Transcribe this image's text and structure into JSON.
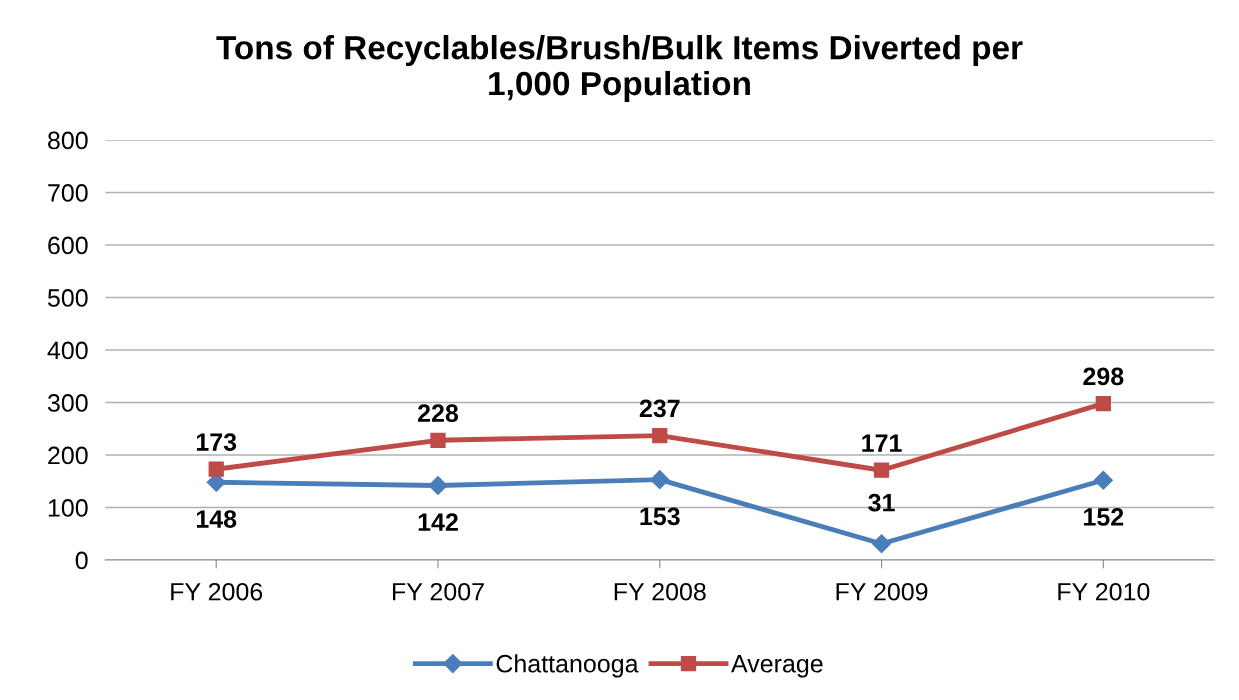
{
  "chart_data": {
    "type": "line",
    "title": "Tons of Recyclables/Brush/Bulk Items Diverted per\n1,000 Population",
    "categories": [
      "FY 2006",
      "FY 2007",
      "FY 2008",
      "FY 2009",
      "FY 2010"
    ],
    "series": [
      {
        "name": "Chattanooga",
        "color": "#4a7ebb",
        "marker": "diamond",
        "values": [
          148,
          142,
          153,
          31,
          152
        ]
      },
      {
        "name": "Average",
        "color": "#be4b48",
        "marker": "square",
        "values": [
          173,
          228,
          237,
          171,
          298
        ]
      }
    ],
    "ylim": [
      0,
      800
    ],
    "yticks": [
      0,
      100,
      200,
      300,
      400,
      500,
      600,
      700,
      800
    ],
    "grid": "y",
    "legend": "bottom",
    "data_labels": true,
    "line_style": "solid"
  }
}
